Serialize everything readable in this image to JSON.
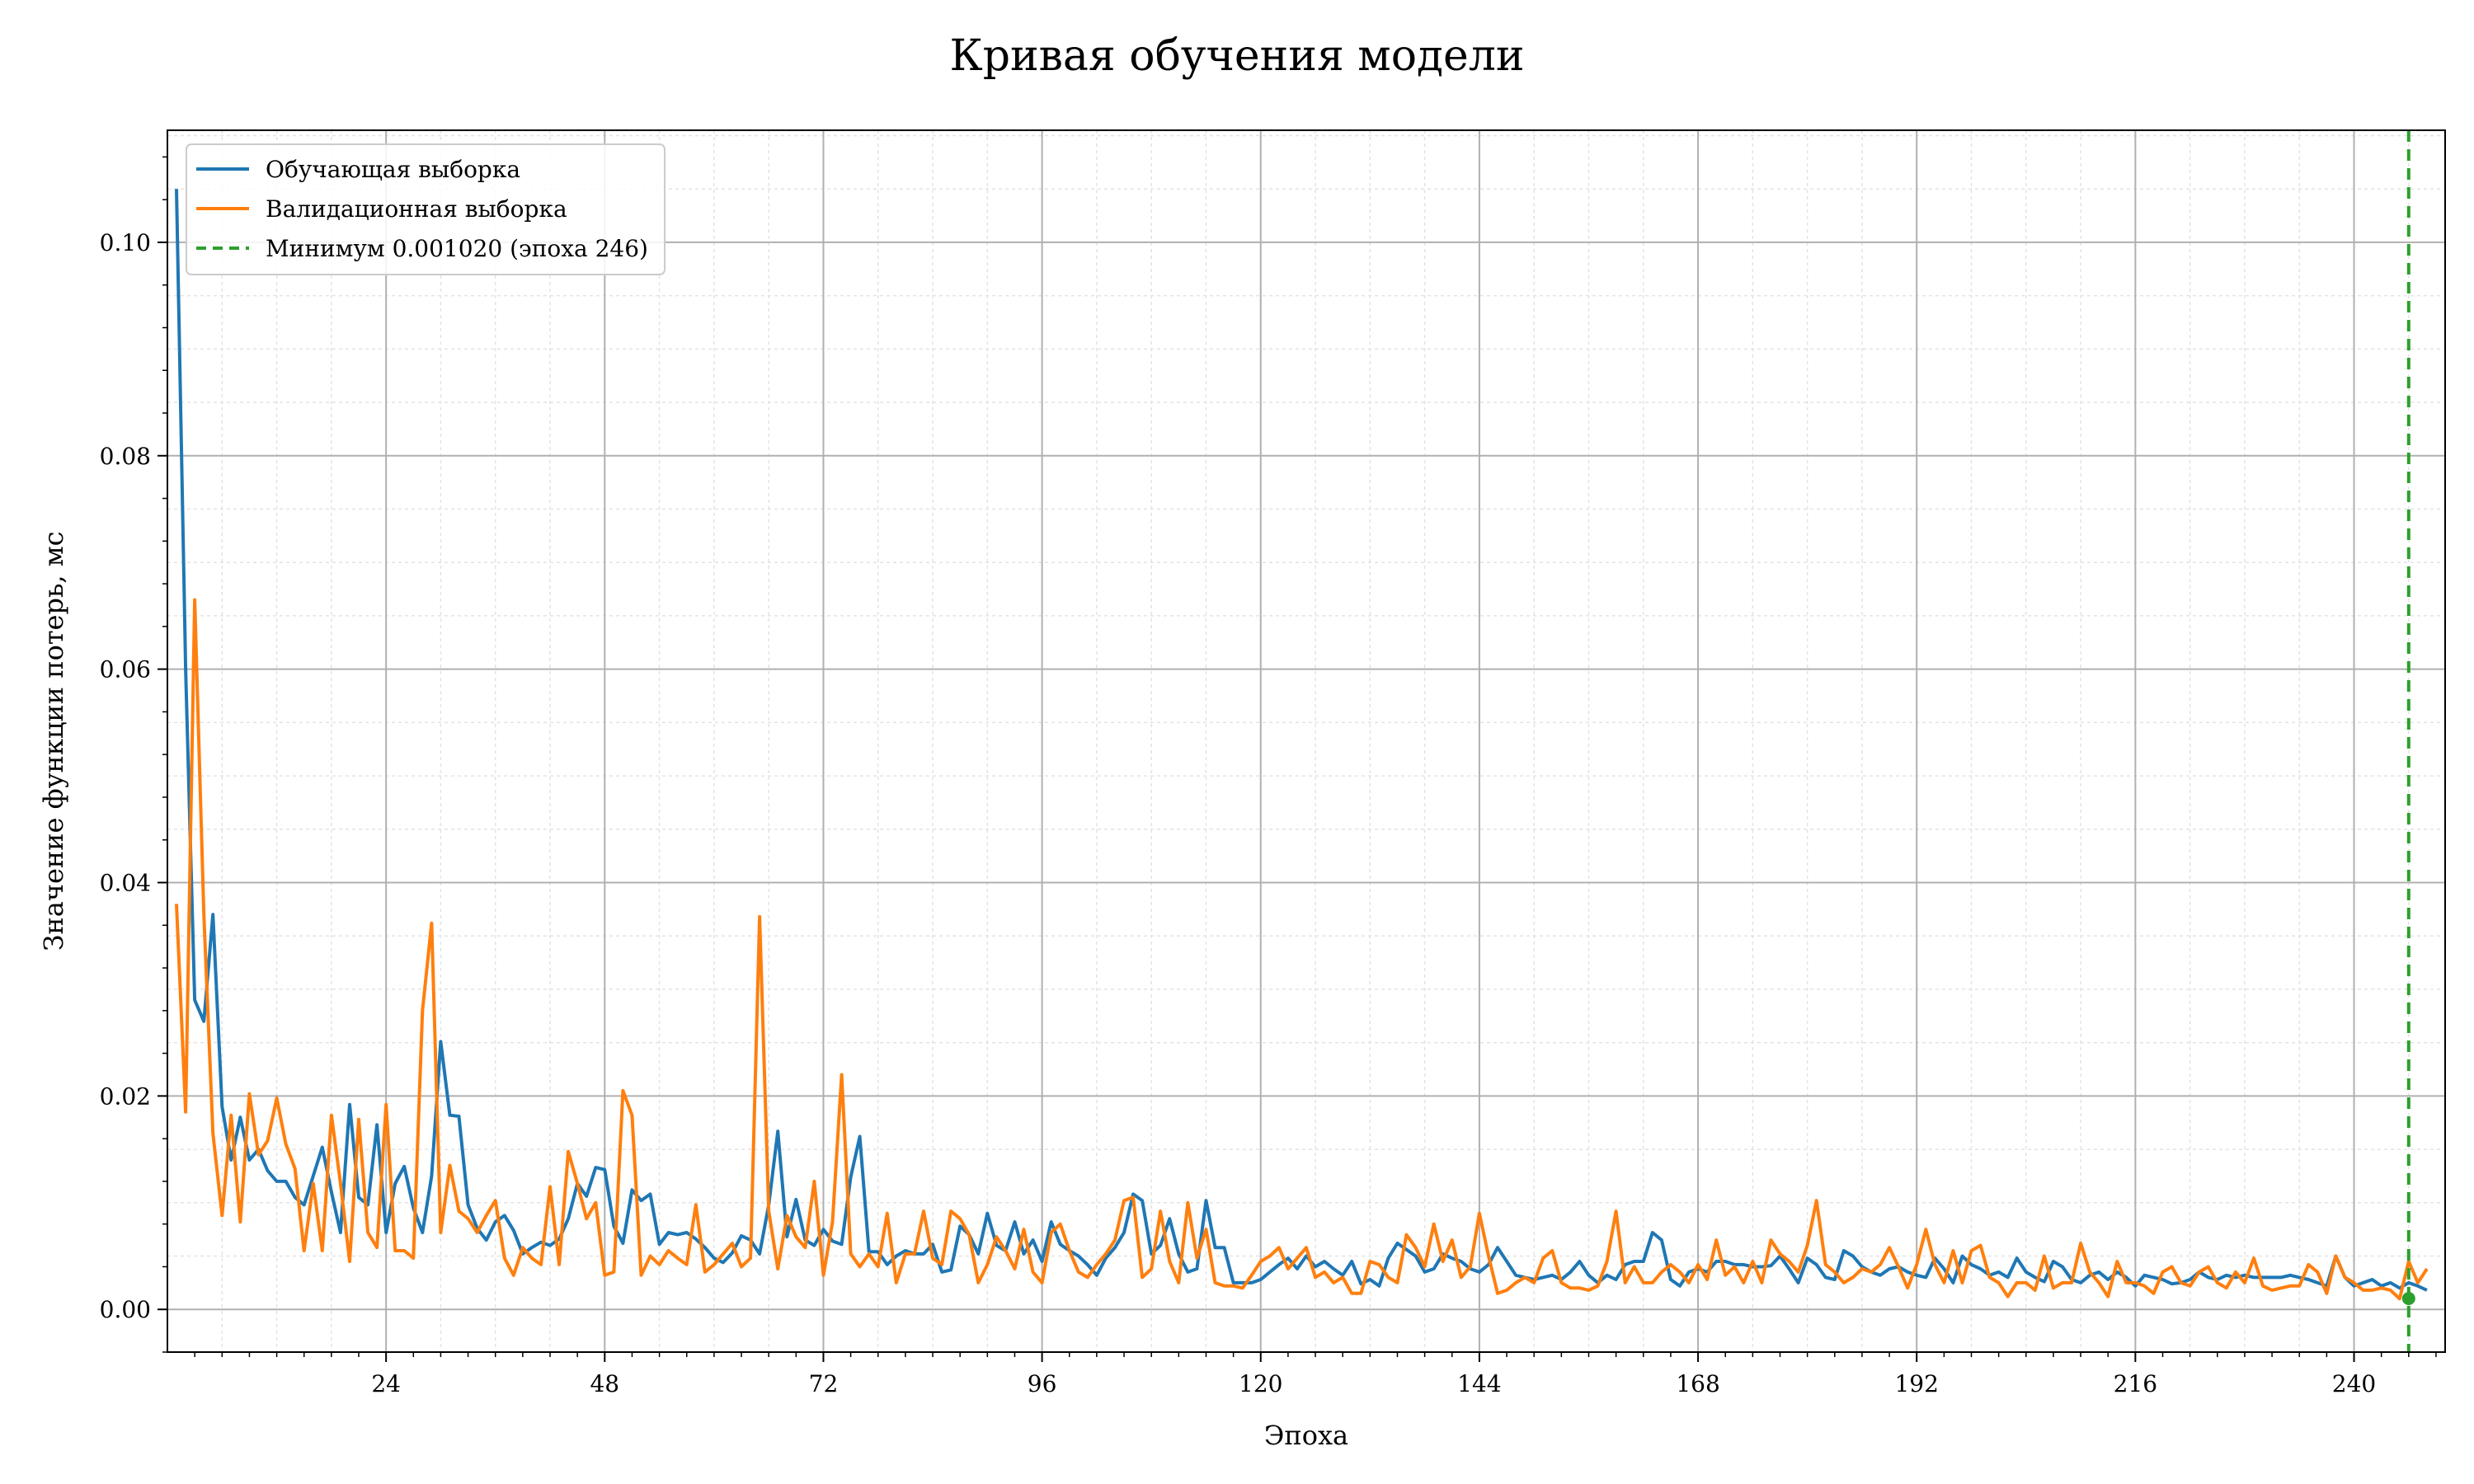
{
  "chart_data": {
    "type": "line",
    "title": "Кривая обучения модели",
    "xlabel": "Эпоха",
    "ylabel": "Значение функции потерь, мс",
    "xlim": [
      0,
      250
    ],
    "ylim": [
      -0.004,
      0.1105
    ],
    "x_ticks": [
      24,
      48,
      72,
      96,
      120,
      144,
      168,
      192,
      216,
      240
    ],
    "y_ticks": [
      0.0,
      0.02,
      0.04,
      0.06,
      0.08,
      0.1
    ],
    "y_tick_labels": [
      "0.00",
      "0.02",
      "0.04",
      "0.06",
      "0.08",
      "0.10"
    ],
    "grid": true,
    "legend_position": "top-left",
    "x_points": [
      1,
      2,
      3,
      4,
      5,
      6,
      7,
      8,
      9,
      10,
      11,
      12,
      13,
      14,
      15,
      16,
      17,
      18,
      19,
      20,
      21,
      22,
      23,
      24,
      25,
      26,
      27,
      28,
      29,
      30,
      31,
      32,
      33,
      34,
      35,
      36,
      37,
      38,
      39,
      40,
      41,
      42,
      43,
      44,
      45,
      46,
      47,
      48,
      49,
      50,
      51,
      52,
      53,
      54,
      55,
      56,
      57,
      58,
      59,
      60,
      61,
      62,
      63,
      64,
      65,
      66,
      67,
      68,
      69,
      70,
      71,
      72,
      73,
      74,
      75,
      76,
      77,
      78,
      79,
      80,
      81,
      82,
      83,
      84,
      85,
      86,
      87,
      88,
      89,
      90,
      91,
      92,
      93,
      94,
      95,
      96,
      97,
      98,
      99,
      100,
      101,
      102,
      103,
      104,
      105,
      106,
      107,
      108,
      109,
      110,
      111,
      112,
      113,
      114,
      115,
      116,
      117,
      118,
      119,
      120,
      121,
      122,
      123,
      124,
      125,
      126,
      127,
      128,
      129,
      130,
      131,
      132,
      133,
      134,
      135,
      136,
      137,
      138,
      139,
      140,
      141,
      142,
      143,
      144,
      145,
      146,
      147,
      148,
      149,
      150,
      151,
      152,
      153,
      154,
      155,
      156,
      157,
      158,
      159,
      160,
      161,
      162,
      163,
      164,
      165,
      166,
      167,
      168,
      169,
      170,
      171,
      172,
      173,
      174,
      175,
      176,
      177,
      178,
      179,
      180,
      181,
      182,
      183,
      184,
      185,
      186,
      187,
      188,
      189,
      190,
      191,
      192,
      193,
      194,
      195,
      196,
      197,
      198,
      199,
      200,
      201,
      202,
      203,
      204,
      205,
      206,
      207,
      208,
      209,
      210,
      211,
      212,
      213,
      214,
      215,
      216,
      217,
      218,
      219,
      220,
      221,
      222,
      223,
      224,
      225,
      226,
      227,
      228,
      229,
      230,
      231,
      232,
      233,
      234,
      235,
      236,
      237,
      238,
      239,
      240,
      241,
      242,
      243,
      244,
      245,
      246,
      247,
      248,
      249
    ],
    "series": [
      {
        "name": "Обучающая выборка",
        "color": "#1f77b4",
        "values": [
          0.105,
          0.06,
          0.029,
          0.027,
          0.037,
          0.019,
          0.014,
          0.018,
          0.014,
          0.015,
          0.013,
          0.012,
          0.012,
          0.0105,
          0.0098,
          0.0125,
          0.0152,
          0.011,
          0.0072,
          0.0192,
          0.0105,
          0.0098,
          0.0173,
          0.0072,
          0.0118,
          0.0134,
          0.0095,
          0.0072,
          0.0125,
          0.0251,
          0.0182,
          0.0181,
          0.0098,
          0.0076,
          0.0065,
          0.0082,
          0.0088,
          0.0074,
          0.0052,
          0.0058,
          0.0063,
          0.006,
          0.0066,
          0.0085,
          0.0118,
          0.0106,
          0.0133,
          0.0131,
          0.0078,
          0.0062,
          0.0112,
          0.0102,
          0.0108,
          0.0061,
          0.0072,
          0.007,
          0.0072,
          0.0066,
          0.0058,
          0.0048,
          0.0044,
          0.0053,
          0.0069,
          0.0065,
          0.0052,
          0.0098,
          0.0167,
          0.0068,
          0.0103,
          0.0065,
          0.006,
          0.0075,
          0.0064,
          0.0061,
          0.0124,
          0.0162,
          0.0054,
          0.0054,
          0.0042,
          0.005,
          0.0055,
          0.0052,
          0.0052,
          0.0061,
          0.0035,
          0.0037,
          0.0078,
          0.007,
          0.0052,
          0.009,
          0.006,
          0.0055,
          0.0082,
          0.0052,
          0.0065,
          0.0045,
          0.0082,
          0.0061,
          0.0055,
          0.005,
          0.0042,
          0.0032,
          0.0048,
          0.0058,
          0.0072,
          0.0108,
          0.0102,
          0.0052,
          0.006,
          0.0085,
          0.0052,
          0.0035,
          0.0038,
          0.0102,
          0.0058,
          0.0058,
          0.0025,
          0.0025,
          0.0025,
          0.0028,
          0.0035,
          0.0042,
          0.0048,
          0.0038,
          0.005,
          0.004,
          0.0045,
          0.0038,
          0.0032,
          0.0045,
          0.0024,
          0.0028,
          0.0022,
          0.0048,
          0.0062,
          0.0056,
          0.005,
          0.0035,
          0.0038,
          0.0052,
          0.0048,
          0.0045,
          0.0038,
          0.0035,
          0.0042,
          0.0058,
          0.0045,
          0.0032,
          0.003,
          0.0028,
          0.003,
          0.0032,
          0.0028,
          0.0035,
          0.0045,
          0.0032,
          0.0025,
          0.0032,
          0.0028,
          0.0042,
          0.0045,
          0.0045,
          0.0072,
          0.0065,
          0.0028,
          0.0022,
          0.0035,
          0.0038,
          0.0035,
          0.0045,
          0.0045,
          0.0042,
          0.0042,
          0.004,
          0.004,
          0.0041,
          0.005,
          0.0038,
          0.0025,
          0.0048,
          0.0042,
          0.003,
          0.0028,
          0.0055,
          0.005,
          0.004,
          0.0035,
          0.0032,
          0.0038,
          0.004,
          0.0035,
          0.0032,
          0.003,
          0.0048,
          0.0038,
          0.0025,
          0.005,
          0.0042,
          0.0038,
          0.0032,
          0.0035,
          0.003,
          0.0048,
          0.0035,
          0.003,
          0.0026,
          0.0045,
          0.004,
          0.0028,
          0.0025,
          0.0032,
          0.0035,
          0.0028,
          0.0035,
          0.003,
          0.0022,
          0.0032,
          0.003,
          0.0028,
          0.0024,
          0.0025,
          0.0028,
          0.0035,
          0.003,
          0.0028,
          0.0032,
          0.003,
          0.0032,
          0.003,
          0.003,
          0.003,
          0.003,
          0.0032,
          0.003,
          0.0028,
          0.0025,
          0.0022,
          0.005,
          0.003,
          0.0022,
          0.0025,
          0.0028,
          0.0022,
          0.0025,
          0.002,
          0.0025,
          0.0022,
          0.0018
        ]
      },
      {
        "name": "Валидационная выборка",
        "color": "#ff7f0e",
        "values": [
          0.038,
          0.0185,
          0.0665,
          0.037,
          0.0165,
          0.0088,
          0.0182,
          0.0082,
          0.0202,
          0.0145,
          0.0158,
          0.0198,
          0.0155,
          0.0132,
          0.0055,
          0.0118,
          0.0055,
          0.0182,
          0.0118,
          0.0045,
          0.0178,
          0.0072,
          0.0058,
          0.0192,
          0.0055,
          0.0055,
          0.0048,
          0.028,
          0.0362,
          0.0072,
          0.0135,
          0.0092,
          0.0085,
          0.0072,
          0.0088,
          0.0102,
          0.0048,
          0.0032,
          0.0058,
          0.0048,
          0.0042,
          0.0115,
          0.0042,
          0.0148,
          0.0118,
          0.0085,
          0.01,
          0.0032,
          0.0035,
          0.0205,
          0.0182,
          0.0032,
          0.005,
          0.0042,
          0.0055,
          0.0048,
          0.0042,
          0.0098,
          0.0035,
          0.0042,
          0.0052,
          0.0062,
          0.004,
          0.0048,
          0.0368,
          0.0092,
          0.0038,
          0.0088,
          0.0068,
          0.0058,
          0.012,
          0.0032,
          0.0082,
          0.022,
          0.0052,
          0.004,
          0.0052,
          0.004,
          0.009,
          0.0025,
          0.0052,
          0.0052,
          0.0092,
          0.0048,
          0.0042,
          0.0092,
          0.0085,
          0.007,
          0.0025,
          0.0042,
          0.0068,
          0.0055,
          0.0038,
          0.0075,
          0.0035,
          0.0025,
          0.0072,
          0.008,
          0.0055,
          0.0035,
          0.003,
          0.0042,
          0.0052,
          0.0065,
          0.0102,
          0.0105,
          0.003,
          0.0038,
          0.0092,
          0.0045,
          0.0025,
          0.01,
          0.0048,
          0.0075,
          0.0025,
          0.0022,
          0.0022,
          0.002,
          0.0032,
          0.0045,
          0.005,
          0.0058,
          0.0038,
          0.0048,
          0.0058,
          0.003,
          0.0035,
          0.0025,
          0.003,
          0.0015,
          0.0015,
          0.0045,
          0.0042,
          0.003,
          0.0025,
          0.007,
          0.0058,
          0.004,
          0.008,
          0.0045,
          0.0065,
          0.003,
          0.004,
          0.009,
          0.005,
          0.0015,
          0.0018,
          0.0025,
          0.003,
          0.0025,
          0.0048,
          0.0055,
          0.0025,
          0.002,
          0.002,
          0.0018,
          0.0022,
          0.0045,
          0.0092,
          0.0025,
          0.004,
          0.0025,
          0.0025,
          0.0035,
          0.0042,
          0.0035,
          0.0025,
          0.0042,
          0.0028,
          0.0065,
          0.0032,
          0.004,
          0.0025,
          0.0045,
          0.0025,
          0.0065,
          0.0052,
          0.0045,
          0.0035,
          0.006,
          0.0102,
          0.0042,
          0.0035,
          0.0025,
          0.003,
          0.0038,
          0.0035,
          0.0042,
          0.0058,
          0.004,
          0.002,
          0.0042,
          0.0075,
          0.0042,
          0.0025,
          0.0055,
          0.0025,
          0.0055,
          0.006,
          0.003,
          0.0025,
          0.0012,
          0.0025,
          0.0025,
          0.0018,
          0.005,
          0.002,
          0.0025,
          0.0025,
          0.0062,
          0.0035,
          0.0025,
          0.0012,
          0.0045,
          0.0025,
          0.0025,
          0.0022,
          0.0015,
          0.0035,
          0.004,
          0.0025,
          0.0022,
          0.0035,
          0.004,
          0.0025,
          0.002,
          0.0035,
          0.0025,
          0.0048,
          0.0022,
          0.0018,
          0.002,
          0.0022,
          0.0022,
          0.0042,
          0.0035,
          0.0015,
          0.005,
          0.003,
          0.0025,
          0.0018,
          0.0018,
          0.002,
          0.0018,
          0.001,
          0.0045,
          0.0025,
          0.0038
        ]
      }
    ],
    "min_marker": {
      "label": "Минимум 0.001020 (эпоха 246)",
      "x": 246,
      "y": 0.00102,
      "color": "#2ca02c"
    }
  }
}
